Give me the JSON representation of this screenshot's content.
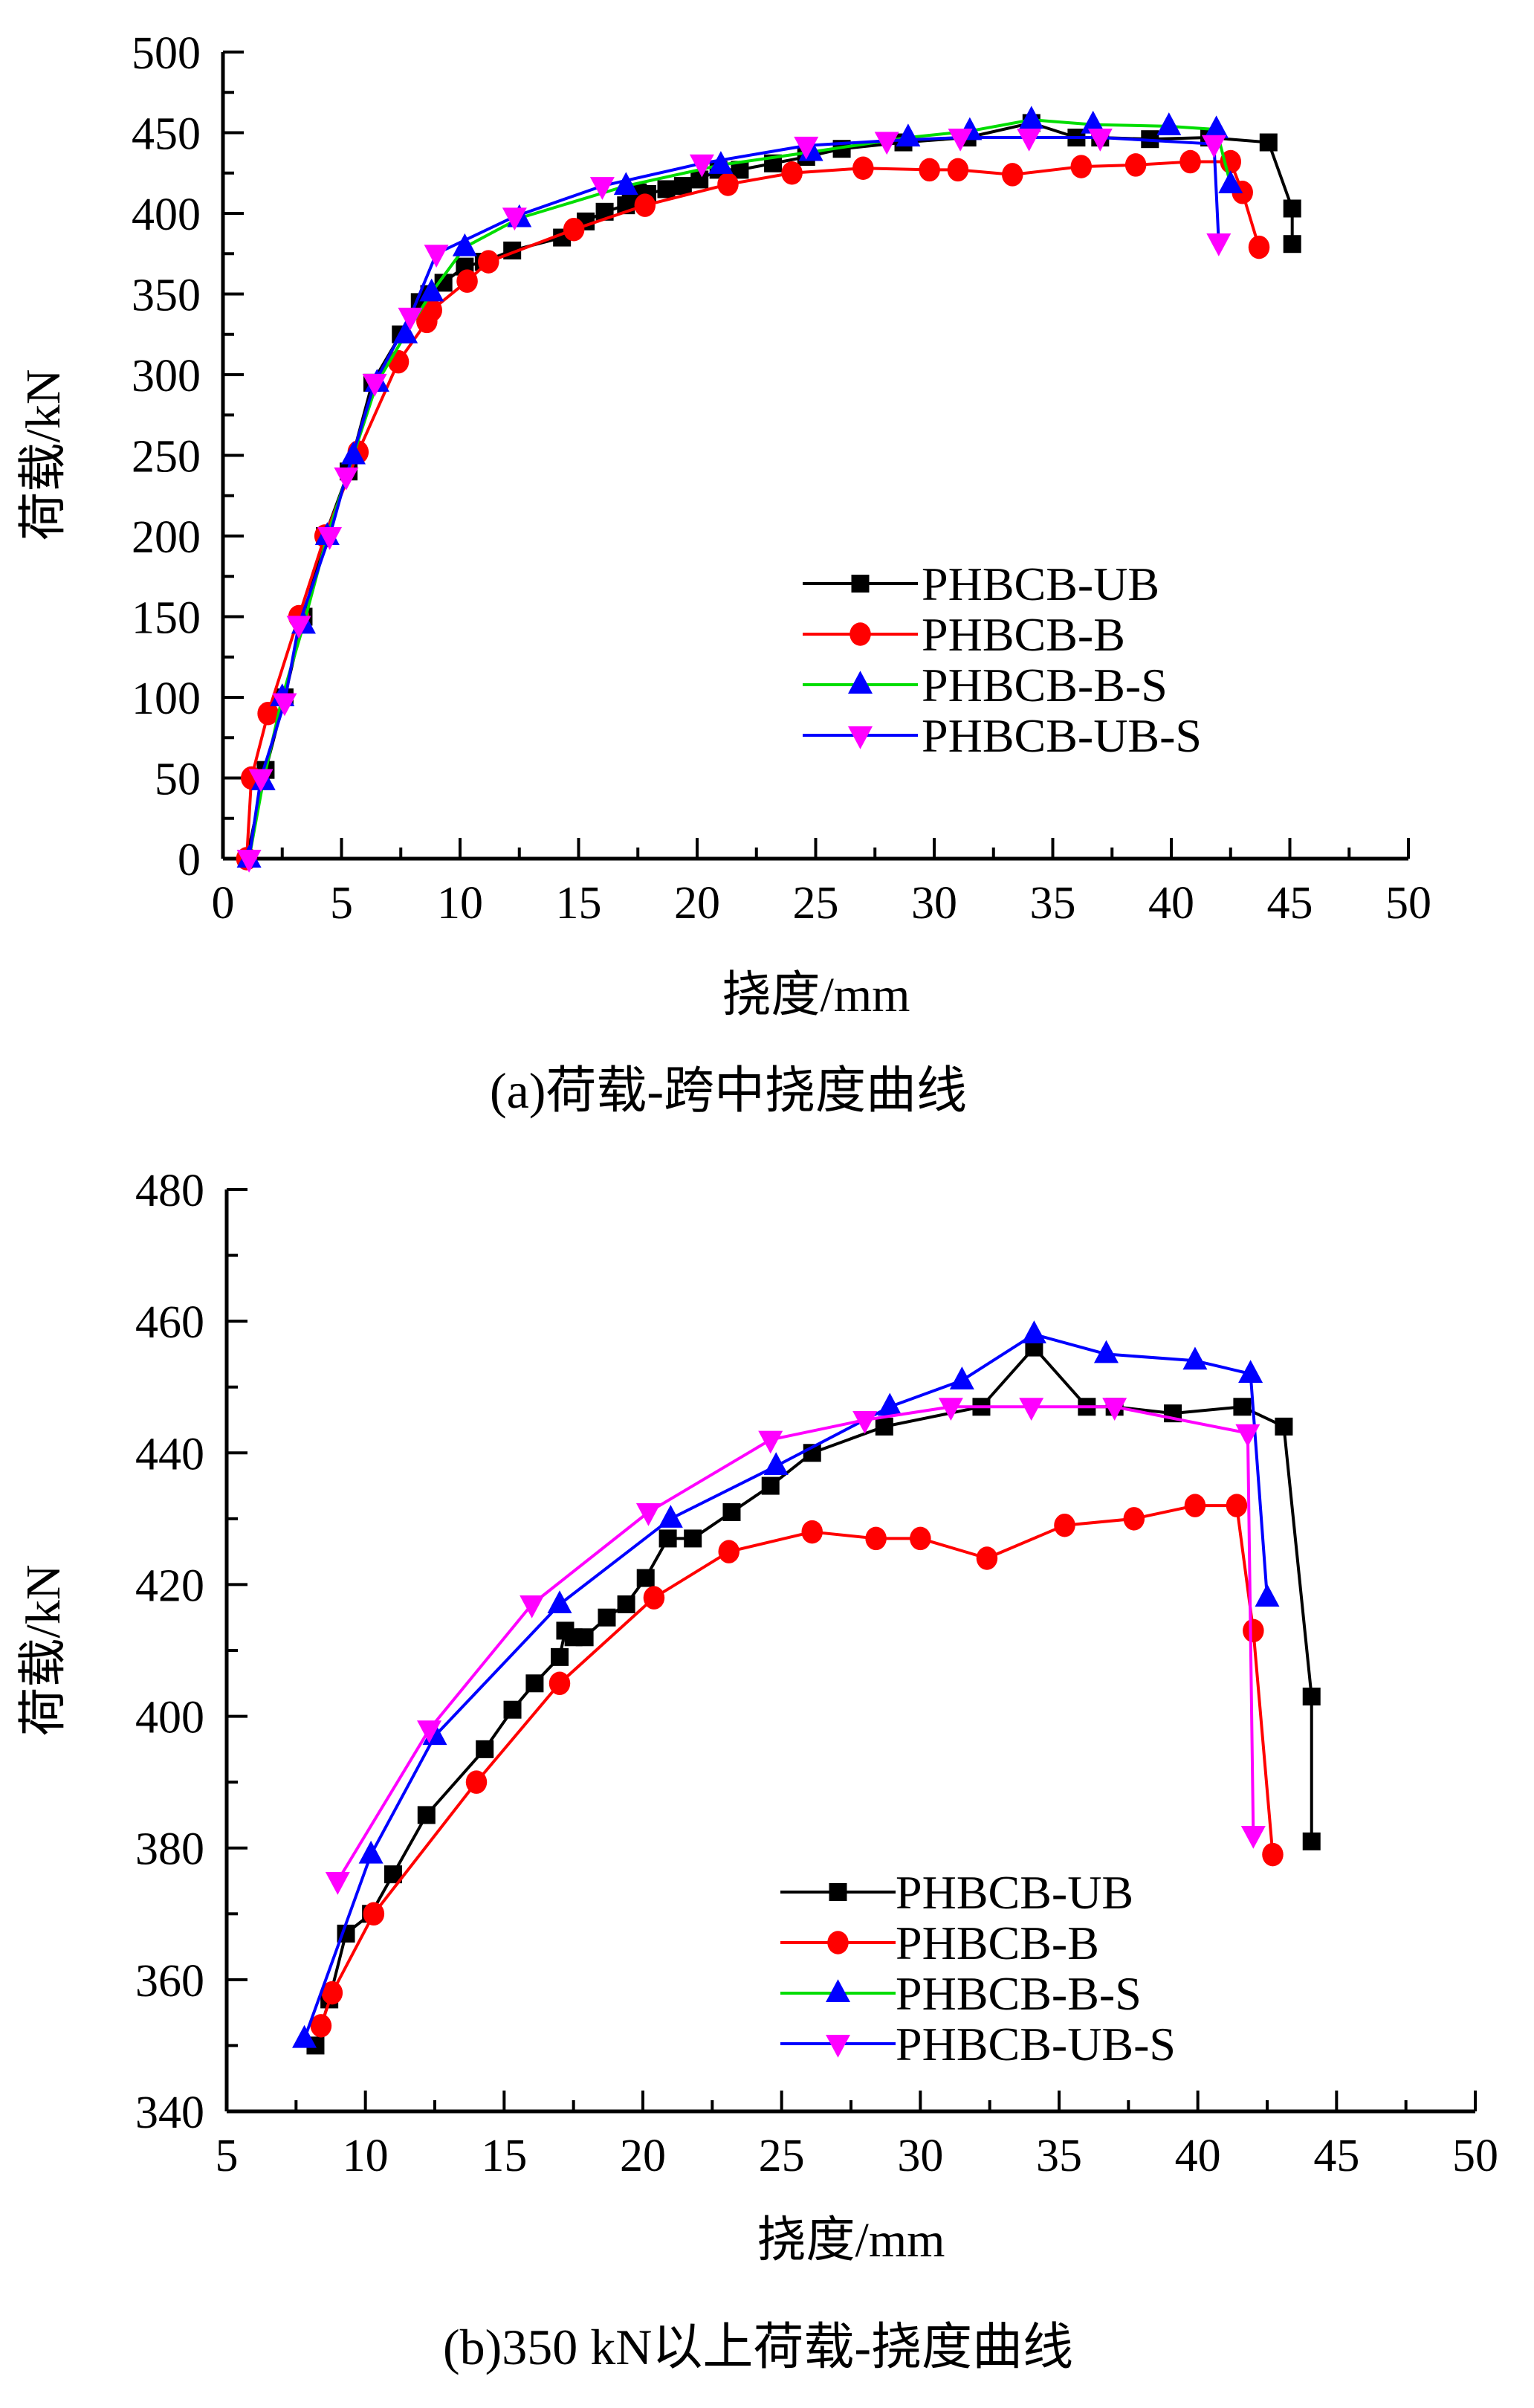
{
  "chart_data": [
    {
      "type": "line",
      "title": "",
      "caption": "(a)荷载-跨中挠度曲线",
      "xlabel": "挠度/mm",
      "ylabel": "荷载/kN",
      "xlim": [
        0,
        50
      ],
      "ylim": [
        0,
        500
      ],
      "xticks": [
        "0",
        "5",
        "10",
        "15",
        "20",
        "25",
        "30",
        "35",
        "40",
        "45",
        "50"
      ],
      "yticks": [
        "0",
        "50",
        "100",
        "150",
        "200",
        "250",
        "300",
        "350",
        "400",
        "450",
        "500"
      ],
      "grid": false,
      "legend_position": "center-right",
      "series": [
        {
          "name": "PHBCB-UB",
          "line_color": "#000000",
          "marker_color": "#000000",
          "marker": "square",
          "dashed": true,
          "x": [
            1.0,
            1.8,
            2.6,
            3.4,
            4.3,
            5.3,
            6.3,
            7.5,
            8.3,
            8.7,
            9.3,
            10.2,
            11.0,
            12.2,
            14.3,
            15.3,
            16.1,
            17.0,
            17.2,
            17.5,
            17.9,
            18.7,
            19.4,
            20.1,
            20.9,
            21.8,
            23.2,
            24.6,
            26.1,
            28.7,
            31.4,
            34.1,
            36.0,
            37.0,
            39.1,
            41.6,
            44.1,
            45.1,
            45.1
          ],
          "y": [
            0,
            55,
            100,
            150,
            200,
            240,
            295,
            325,
            345,
            350,
            357,
            367,
            370,
            377,
            385,
            395,
            401,
            405,
            409,
            413,
            412,
            415,
            417,
            421,
            427,
            427,
            431,
            435,
            440,
            444,
            447,
            456,
            447,
            447,
            446,
            447,
            444,
            403,
            381
          ]
        },
        {
          "name": "PHBCB-B",
          "line_color": "#ff0000",
          "marker_color": "#ff0000",
          "marker": "circle",
          "dashed": true,
          "x": [
            1.0,
            1.2,
            1.9,
            3.2,
            4.3,
            5.7,
            7.4,
            8.6,
            8.8,
            10.3,
            11.2,
            14.8,
            17.8,
            21.3,
            24.0,
            27.0,
            29.8,
            31.0,
            33.3,
            36.2,
            38.5,
            40.8,
            42.5,
            43.0,
            43.7
          ],
          "y": [
            0,
            50,
            90,
            150,
            200,
            252,
            308,
            333,
            340,
            358,
            370,
            390,
            405,
            418,
            425,
            428,
            427,
            427,
            424,
            429,
            430,
            432,
            432,
            413,
            379
          ]
        },
        {
          "name": "PHBCB-B-S",
          "line_color": "#00dd00",
          "marker_color": "#0000ff",
          "marker": "triangle-up",
          "dashed": true,
          "x": [
            1.1,
            1.7,
            2.5,
            3.4,
            4.4,
            5.5,
            6.5,
            7.7,
            8.8,
            10.2,
            12.5,
            17.0,
            21.0,
            24.8,
            28.9,
            31.5,
            34.1,
            36.7,
            39.9,
            41.9,
            42.5
          ],
          "y": [
            0,
            48,
            100,
            145,
            200,
            250,
            295,
            325,
            351,
            379,
            397,
            417,
            430,
            438,
            447,
            451,
            458,
            455,
            454,
            452,
            418
          ]
        },
        {
          "name": "PHBCB-UB-S",
          "line_color": "#0000ff",
          "marker_color": "#ff00ff",
          "marker": "triangle-down",
          "dashed": false,
          "x": [
            1.1,
            1.6,
            2.6,
            3.2,
            4.5,
            5.2,
            6.4,
            7.9,
            9.0,
            12.3,
            16.0,
            20.2,
            24.6,
            28.0,
            31.1,
            34.0,
            37.0,
            41.8,
            42.0
          ],
          "y": [
            0,
            50,
            97,
            145,
            200,
            237,
            295,
            336,
            375,
            398,
            417,
            431,
            442,
            445,
            447,
            447,
            447,
            443,
            382
          ]
        }
      ]
    },
    {
      "type": "line",
      "title": "",
      "caption": "(b)350 kN以上荷载-挠度曲线",
      "xlabel": "挠度/mm",
      "ylabel": "荷载/kN",
      "xlim": [
        5,
        50
      ],
      "ylim": [
        340,
        480
      ],
      "xticks": [
        "5",
        "10",
        "15",
        "20",
        "25",
        "30",
        "35",
        "40",
        "45",
        "50"
      ],
      "yticks": [
        "340",
        "360",
        "380",
        "400",
        "420",
        "440",
        "460",
        "480"
      ],
      "grid": false,
      "legend_position": "bottom-right",
      "series": [
        {
          "name": "PHBCB-UB",
          "line_color": "#000000",
          "marker_color": "#000000",
          "marker": "square",
          "x": [
            8.2,
            8.7,
            9.3,
            10.2,
            11.0,
            12.2,
            14.3,
            15.3,
            16.1,
            17.0,
            17.2,
            17.5,
            17.9,
            18.7,
            19.4,
            20.1,
            20.9,
            21.8,
            23.2,
            24.6,
            26.1,
            28.7,
            32.2,
            34.1,
            36.0,
            37.0,
            39.1,
            41.6,
            43.1,
            44.1,
            44.1
          ],
          "y": [
            350,
            357,
            367,
            370,
            376,
            385,
            395,
            401,
            405,
            409,
            413,
            412,
            412,
            415,
            417,
            421,
            427,
            427,
            431,
            435,
            440,
            444,
            447,
            456,
            447,
            447,
            446,
            447,
            444,
            403,
            381
          ]
        },
        {
          "name": "PHBCB-B",
          "line_color": "#ff0000",
          "marker_color": "#ff0000",
          "marker": "circle",
          "x": [
            8.4,
            8.8,
            10.3,
            14.0,
            17.0,
            20.4,
            23.1,
            26.1,
            28.4,
            30.0,
            32.4,
            35.2,
            37.7,
            39.9,
            41.4,
            42.0,
            42.7
          ],
          "y": [
            353,
            358,
            370,
            390,
            405,
            418,
            425,
            428,
            427,
            427,
            424,
            429,
            430,
            432,
            432,
            413,
            379
          ]
        },
        {
          "name": "PHBCB-B-S",
          "line_color": "#0000ff",
          "legend_line_color": "#00dd00",
          "marker_color": "#0000ff",
          "marker": "triangle-up",
          "x": [
            7.8,
            10.2,
            12.5,
            17.0,
            21.0,
            24.8,
            28.9,
            31.5,
            34.1,
            36.7,
            39.9,
            41.9,
            42.5
          ],
          "y": [
            351,
            379,
            397,
            417,
            430,
            438,
            447,
            451,
            458,
            455,
            454,
            452,
            418
          ]
        },
        {
          "name": "PHBCB-UB-S",
          "line_color": "#ff00ff",
          "legend_line_color": "#0000ff",
          "marker_color": "#ff00ff",
          "marker": "triangle-down",
          "x": [
            9.0,
            12.3,
            16.0,
            20.2,
            24.6,
            28.0,
            31.1,
            34.0,
            37.0,
            41.8,
            42.0
          ],
          "y": [
            375,
            398,
            417,
            431,
            442,
            445,
            447,
            447,
            447,
            443,
            382
          ]
        }
      ]
    }
  ]
}
